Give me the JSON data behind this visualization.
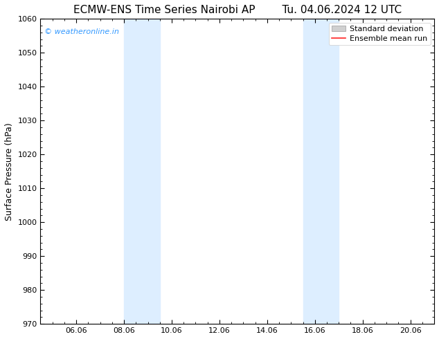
{
  "title_left": "ECMW-ENS Time Series Nairobi AP",
  "title_right": "Tu. 04.06.2024 12 UTC",
  "ylabel": "Surface Pressure (hPa)",
  "ylim": [
    970,
    1060
  ],
  "yticks": [
    970,
    980,
    990,
    1000,
    1010,
    1020,
    1030,
    1040,
    1050,
    1060
  ],
  "xlim_start": 4.5,
  "xlim_end": 21.0,
  "xtick_labels": [
    "06.06",
    "08.06",
    "10.06",
    "12.06",
    "14.06",
    "16.06",
    "18.06",
    "20.06"
  ],
  "xtick_positions": [
    6,
    8,
    10,
    12,
    14,
    16,
    18,
    20
  ],
  "shaded_bands": [
    {
      "x_start": 8.0,
      "x_end": 9.5
    },
    {
      "x_start": 15.5,
      "x_end": 17.0
    }
  ],
  "shade_color": "#ddeeff",
  "background_color": "#ffffff",
  "watermark_text": "© weatheronline.in",
  "watermark_color": "#3399ff",
  "legend_std_color": "#d0d0d0",
  "legend_mean_color": "#ff2222",
  "title_fontsize": 11,
  "axis_label_fontsize": 9,
  "tick_fontsize": 8,
  "watermark_fontsize": 8,
  "legend_fontsize": 8
}
